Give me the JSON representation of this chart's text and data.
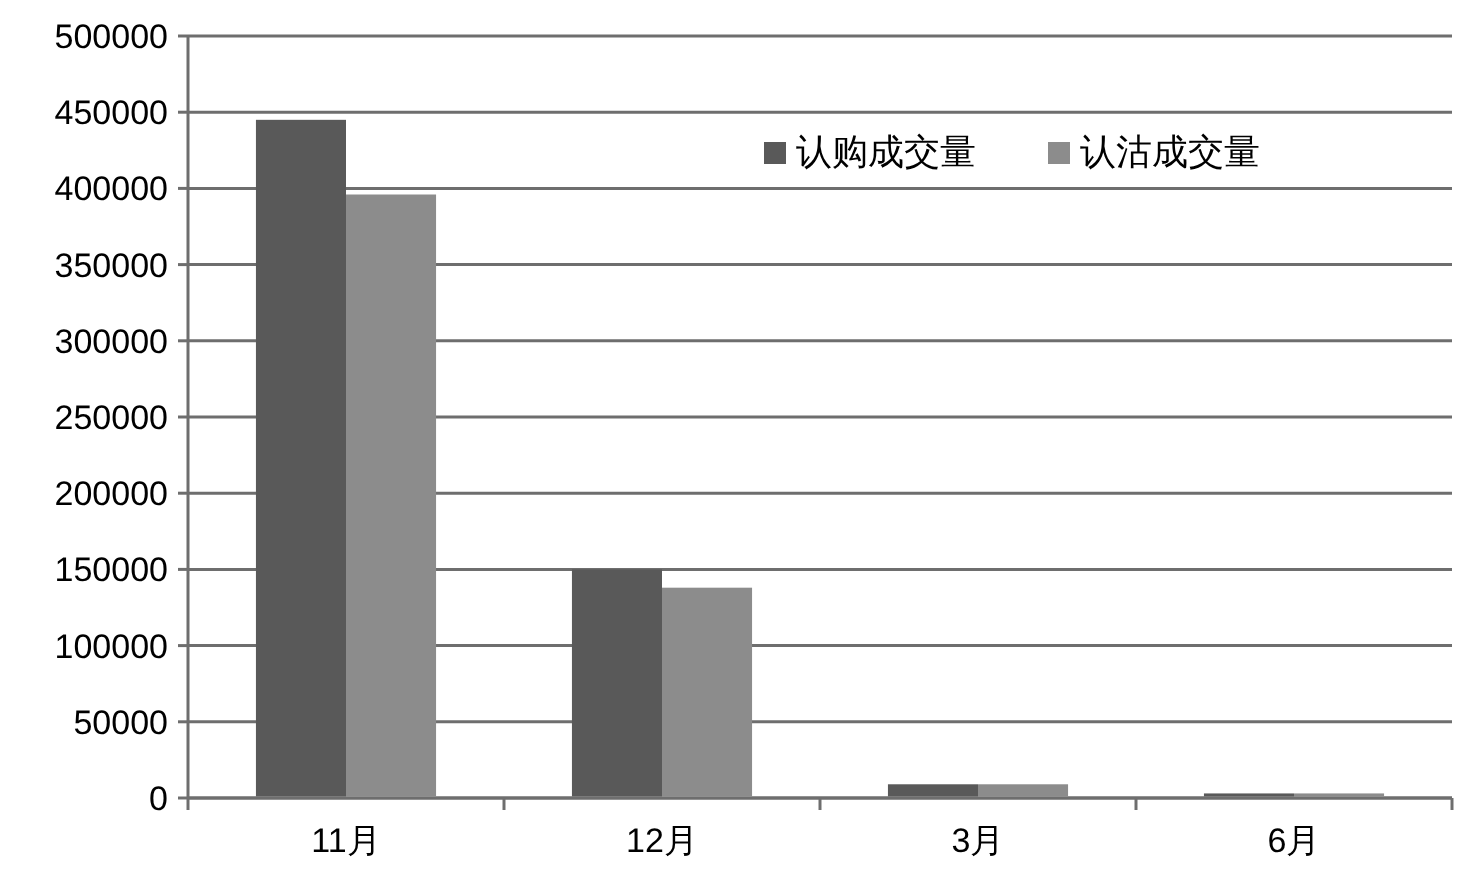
{
  "chart_data": {
    "type": "bar",
    "categories": [
      "11月",
      "12月",
      "3月",
      "6月"
    ],
    "series": [
      {
        "name": "认购成交量",
        "color": "#595959",
        "values": [
          445000,
          150000,
          9000,
          3000
        ]
      },
      {
        "name": "认沽成交量",
        "color": "#8c8c8c",
        "values": [
          396000,
          138000,
          9000,
          3000
        ]
      }
    ],
    "ylim": [
      0,
      500000
    ],
    "yticks": [
      0,
      50000,
      100000,
      150000,
      200000,
      250000,
      300000,
      350000,
      400000,
      450000,
      500000
    ],
    "grid": "y",
    "legend": "top right"
  }
}
